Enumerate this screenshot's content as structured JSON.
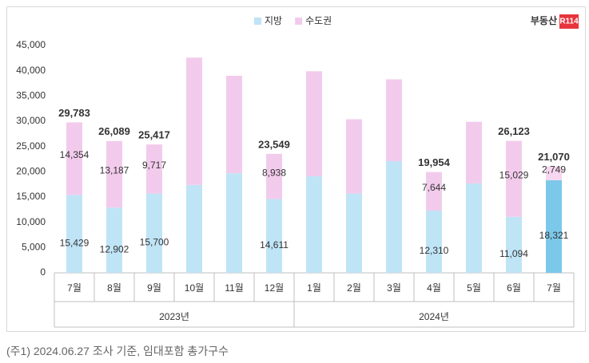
{
  "chart_data": {
    "type": "stacked_bar",
    "categories": [
      "7월",
      "8월",
      "9월",
      "10월",
      "11월",
      "12월",
      "1월",
      "2월",
      "3월",
      "4월",
      "5월",
      "6월",
      "7월"
    ],
    "x_groups": [
      {
        "label": "2023년",
        "span": 6
      },
      {
        "label": "2024년",
        "span": 7
      }
    ],
    "series": [
      {
        "name": "지방",
        "color": "#bfe4f6",
        "colors": [
          "#bfe4f6",
          "#bfe4f6",
          "#bfe4f6",
          "#bfe4f6",
          "#bfe4f6",
          "#bfe4f6",
          "#bfe4f6",
          "#bfe4f6",
          "#bfe4f6",
          "#bfe4f6",
          "#bfe4f6",
          "#bfe4f6",
          "#7cc8ea"
        ],
        "values": [
          15429,
          12902,
          15700,
          17400,
          19700,
          14611,
          19100,
          15700,
          22100,
          12310,
          17700,
          11094,
          18321
        ],
        "value_labels": [
          "15,429",
          "12,902",
          "15,700",
          null,
          null,
          "14,611",
          null,
          null,
          null,
          "12,310",
          null,
          "11,094",
          "18,321"
        ]
      },
      {
        "name": "수도권",
        "color": "#f2cbec",
        "colors": [
          "#f2cbec",
          "#f2cbec",
          "#f2cbec",
          "#f2cbec",
          "#f2cbec",
          "#f2cbec",
          "#f2cbec",
          "#f2cbec",
          "#f2cbec",
          "#f2cbec",
          "#f2cbec",
          "#f2cbec",
          "#f6d6f0"
        ],
        "values": [
          14354,
          13187,
          9717,
          25200,
          19300,
          8938,
          20800,
          14700,
          16200,
          7644,
          12200,
          15029,
          2749
        ],
        "value_labels": [
          "14,354",
          "13,187",
          "9,717",
          null,
          null,
          "8,938",
          null,
          null,
          null,
          "7,644",
          null,
          "15,029",
          "2,749"
        ]
      }
    ],
    "totals": {
      "values": [
        29783,
        26089,
        25417,
        null,
        null,
        23549,
        null,
        null,
        null,
        19954,
        null,
        26123,
        21070
      ],
      "value_labels": [
        "29,783",
        "26,089",
        "25,417",
        null,
        null,
        "23,549",
        null,
        null,
        null,
        "19,954",
        null,
        "26,123",
        "21,070"
      ]
    },
    "ylim": [
      0,
      45000
    ],
    "yticks": [
      0,
      {
        "value": 5000,
        "label": "5,000"
      },
      {
        "value": 10000,
        "label": "10,000"
      },
      {
        "value": 15000,
        "label": "15,000"
      },
      {
        "value": 20000,
        "label": "20,000"
      },
      {
        "value": 25000,
        "label": "25,000"
      },
      {
        "value": 30000,
        "label": "30,000"
      },
      {
        "value": 35000,
        "label": "35,000"
      },
      {
        "value": 40000,
        "label": "40,000"
      },
      {
        "value": 45000,
        "label": "45,000"
      }
    ],
    "grid": false,
    "legend": "top"
  },
  "logo": {
    "text": "부동산",
    "badge": "R114"
  },
  "footnote": "(주1) 2024.06.27 조사 기준, 임대포함 총가구수"
}
